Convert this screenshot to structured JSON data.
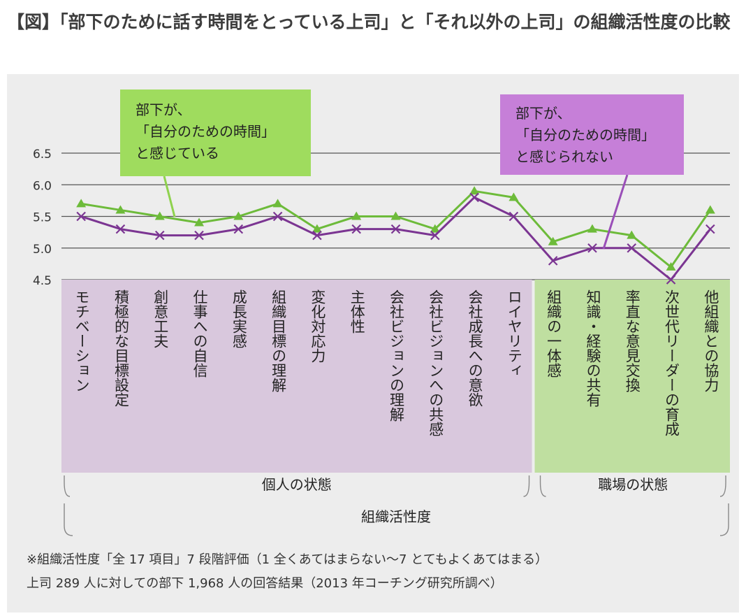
{
  "title": "【図】「部下のために話す時間をとっている上司」と「それ以外の上司」の組織活性度の比較",
  "callouts": {
    "a": {
      "lines": [
        "部下が、",
        "「自分のための時間」",
        "と感じている"
      ],
      "color": "#9fdc5e"
    },
    "b": {
      "lines": [
        "部下が、",
        "「自分のための時間」",
        "と感じられない"
      ],
      "color": "#c67fd8"
    }
  },
  "chart_data": {
    "type": "line",
    "categories": [
      "モチベーション",
      "積極的な目標設定",
      "創意工夫",
      "仕事への自信",
      "成長実感",
      "組織目標の理解",
      "変化対応力",
      "主体性",
      "会社ビジョンの理解",
      "会社ビジョンへの共感",
      "会社成長への意欲",
      "ロイヤリティ",
      "組織の一体感",
      "知識・経験の共有",
      "率直な意見交換",
      "次世代リーダーの育成",
      "他組織との協力"
    ],
    "series": [
      {
        "name": "部下が、「自分のための時間」と感じている",
        "values": [
          5.7,
          5.6,
          5.5,
          5.4,
          5.5,
          5.7,
          5.3,
          5.5,
          5.5,
          5.3,
          5.9,
          5.8,
          5.1,
          5.3,
          5.2,
          4.7,
          5.6
        ],
        "color": "#6dbb3a",
        "marker": "triangle"
      },
      {
        "name": "部下が、「自分のための時間」と感じられない",
        "values": [
          5.5,
          5.3,
          5.2,
          5.2,
          5.3,
          5.5,
          5.2,
          5.3,
          5.3,
          5.2,
          5.8,
          5.5,
          4.8,
          5.0,
          5.0,
          4.5,
          5.3
        ],
        "color": "#7b3592",
        "marker": "x"
      }
    ],
    "yticks": [
      "6.5",
      "6.0",
      "5.5",
      "5.0",
      "4.5"
    ],
    "ylim": [
      4.5,
      6.5
    ],
    "groups": [
      {
        "label": "個人の状態",
        "count": 12,
        "color": "#d9c8dd"
      },
      {
        "label": "職場の状態",
        "count": 5,
        "color": "#bfdfa0"
      }
    ],
    "overall_label": "組織活性度"
  },
  "notes": [
    "※組織活性度「全 17 項目」7 段階評価（1 全くあてはまらない〜7 とてもよくあてはまる）",
    "上司 289 人に対しての部下 1,968 人の回答結果（2013 年コーチング研究所調べ）"
  ]
}
